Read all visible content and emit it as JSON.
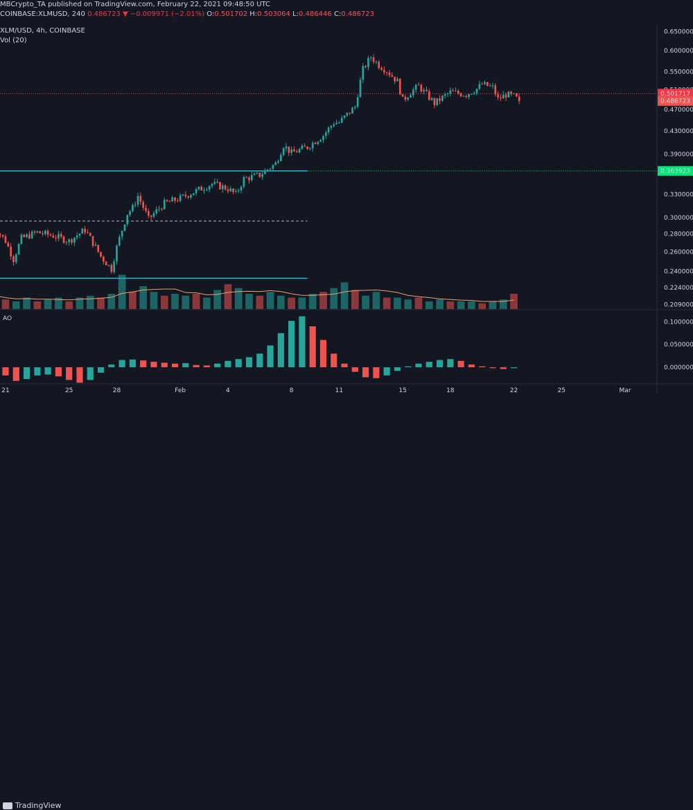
{
  "header": {
    "publisher_line": "MBCrypto_TA published on TradingView.com, February 22, 2021 09:48:50 UTC",
    "symbol_line": {
      "symbol": "COINBASE:XLMUSD, 240",
      "last": "0.486723",
      "arrow": "▼",
      "change": "−0.009971 (−2.01%)",
      "o_label": "O:",
      "o": "0.501702",
      "h_label": "H:",
      "h": "0.503064",
      "l_label": "L:",
      "l": "0.486446",
      "c_label": "C:",
      "c": "0.486723"
    },
    "pair_line": "XLM/USD, 4h, COINBASE",
    "vol_line": "Vol (20)",
    "ao_label": "AO"
  },
  "branding": {
    "logo_text": "TradingView"
  },
  "colors": {
    "background": "#131722",
    "up": "#26a69a",
    "down": "#ef5350",
    "support_line": "#26c6da",
    "dashed_line": "#b2b5be",
    "red_price_tag": "#f23645",
    "green_price_tag": "#00e676",
    "vol_ma": "#f0a070"
  },
  "chart_data": [
    {
      "type": "candlestick",
      "title": "XLM/USD, 4h, COINBASE",
      "y_axis_ticks": [
        "0.650000",
        "0.600000",
        "0.550000",
        "0.510000",
        "0.470000",
        "0.430000",
        "0.390000",
        "0.330000",
        "0.300000",
        "0.280000",
        "0.260000",
        "0.240000",
        "0.224000",
        "0.209000"
      ],
      "ylim": [
        0.205,
        0.66
      ],
      "y_scale": "log",
      "x_axis_ticks": [
        "21",
        "25",
        "28",
        "Feb",
        "4",
        "8",
        "11",
        "15",
        "18",
        "22",
        "25",
        "Mar"
      ],
      "x_axis_dates": [
        "2021-01-21",
        "2021-01-25",
        "2021-01-28",
        "2021-02-01",
        "2021-02-04",
        "2021-02-08",
        "2021-02-11",
        "2021-02-15",
        "2021-02-18",
        "2021-02-22",
        "2021-02-25",
        "2021-03-01"
      ],
      "price_tags": [
        {
          "value": "0.501717",
          "style": "red"
        },
        {
          "value": "0.486723",
          "style": "down"
        },
        {
          "value": "0.363923",
          "style": "green"
        }
      ],
      "horizontal_lines": [
        {
          "price": 0.363923,
          "style": "solid-cyan",
          "end_date": "2021-02-09"
        },
        {
          "price": 0.2955,
          "style": "dashed",
          "end_date": "2021-02-09"
        },
        {
          "price": 0.233,
          "style": "solid-cyan",
          "end_date": "2021-02-09"
        },
        {
          "price": 0.501717,
          "style": "dotted-red",
          "end_date": "axis"
        },
        {
          "price": 0.363923,
          "style": "dotted-green",
          "start_date": "2021-02-09",
          "end_date": "axis"
        }
      ],
      "anchors": [
        [
          "2021-01-20",
          0.295
        ],
        [
          "2021-01-21",
          0.272
        ],
        [
          "2021-01-21T12",
          0.252
        ],
        [
          "2021-01-22",
          0.275
        ],
        [
          "2021-01-23",
          0.282
        ],
        [
          "2021-01-24",
          0.278
        ],
        [
          "2021-01-25",
          0.272
        ],
        [
          "2021-01-26",
          0.285
        ],
        [
          "2021-01-27",
          0.255
        ],
        [
          "2021-01-27T16",
          0.242
        ],
        [
          "2021-01-28",
          0.265
        ],
        [
          "2021-01-28T16",
          0.305
        ],
        [
          "2021-01-29",
          0.312
        ],
        [
          "2021-01-29T08",
          0.328
        ],
        [
          "2021-01-30",
          0.298
        ],
        [
          "2021-01-31",
          0.318
        ],
        [
          "2021-02-01",
          0.325
        ],
        [
          "2021-02-02",
          0.335
        ],
        [
          "2021-02-03",
          0.345
        ],
        [
          "2021-02-04",
          0.338
        ],
        [
          "2021-02-04T12",
          0.33
        ],
        [
          "2021-02-05",
          0.352
        ],
        [
          "2021-02-06",
          0.358
        ],
        [
          "2021-02-07",
          0.375
        ],
        [
          "2021-02-07T12",
          0.405
        ],
        [
          "2021-02-08",
          0.392
        ],
        [
          "2021-02-09",
          0.402
        ],
        [
          "2021-02-10",
          0.422
        ],
        [
          "2021-02-10T16",
          0.445
        ],
        [
          "2021-02-11",
          0.445
        ],
        [
          "2021-02-12",
          0.475
        ],
        [
          "2021-02-12T12",
          0.555
        ],
        [
          "2021-02-13",
          0.585
        ],
        [
          "2021-02-13T12",
          0.565
        ],
        [
          "2021-02-14",
          0.552
        ],
        [
          "2021-02-14T16",
          0.528
        ],
        [
          "2021-02-15",
          0.488
        ],
        [
          "2021-02-15T12",
          0.505
        ],
        [
          "2021-02-16",
          0.518
        ],
        [
          "2021-02-16T12",
          0.5
        ],
        [
          "2021-02-17",
          0.482
        ],
        [
          "2021-02-18",
          0.505
        ],
        [
          "2021-02-19",
          0.5
        ],
        [
          "2021-02-19T16",
          0.512
        ],
        [
          "2021-02-20",
          0.522
        ],
        [
          "2021-02-20T16",
          0.515
        ],
        [
          "2021-02-21",
          0.49
        ],
        [
          "2021-02-21T12",
          0.5
        ],
        [
          "2021-02-22",
          0.496
        ],
        [
          "2021-02-22T08",
          0.4867
        ]
      ],
      "last_close": 0.486723
    },
    {
      "type": "bar",
      "title": "Vol (20)",
      "series": [
        {
          "values": [
            0.35,
            0.25,
            0.2,
            0.3,
            0.2,
            0.25,
            0.3,
            0.2,
            0.3,
            0.35,
            0.3,
            0.4,
            0.9,
            0.45,
            0.6,
            0.45,
            0.35,
            0.4,
            0.35,
            0.4,
            0.3,
            0.5,
            0.65,
            0.55,
            0.4,
            0.35,
            0.45,
            0.35,
            0.3,
            0.3,
            0.4,
            0.45,
            0.55,
            0.7,
            0.5,
            0.35,
            0.45,
            0.3,
            0.3,
            0.25,
            0.3,
            0.2,
            0.25,
            0.2,
            0.2,
            0.2,
            0.15,
            0.2,
            0.25,
            0.4
          ]
        }
      ]
    },
    {
      "type": "bar",
      "title": "AO",
      "y_axis_ticks": [
        "0.100000",
        "0.050000",
        "0.000000"
      ],
      "ylim": [
        -0.035,
        0.125
      ],
      "series": [
        {
          "values": [
            -0.005,
            -0.018,
            -0.03,
            -0.026,
            -0.018,
            -0.016,
            -0.02,
            -0.028,
            -0.034,
            -0.028,
            -0.012,
            0.006,
            0.016,
            0.017,
            0.015,
            0.012,
            0.01,
            0.008,
            0.009,
            0.005,
            0.004,
            0.008,
            0.014,
            0.018,
            0.022,
            0.03,
            0.048,
            0.075,
            0.102,
            0.112,
            0.09,
            0.06,
            0.03,
            0.008,
            -0.01,
            -0.022,
            -0.024,
            -0.018,
            -0.008,
            0.002,
            0.008,
            0.012,
            0.016,
            0.018,
            0.014,
            0.006,
            0.002,
            -0.002,
            -0.004,
            -0.002
          ]
        }
      ]
    }
  ]
}
